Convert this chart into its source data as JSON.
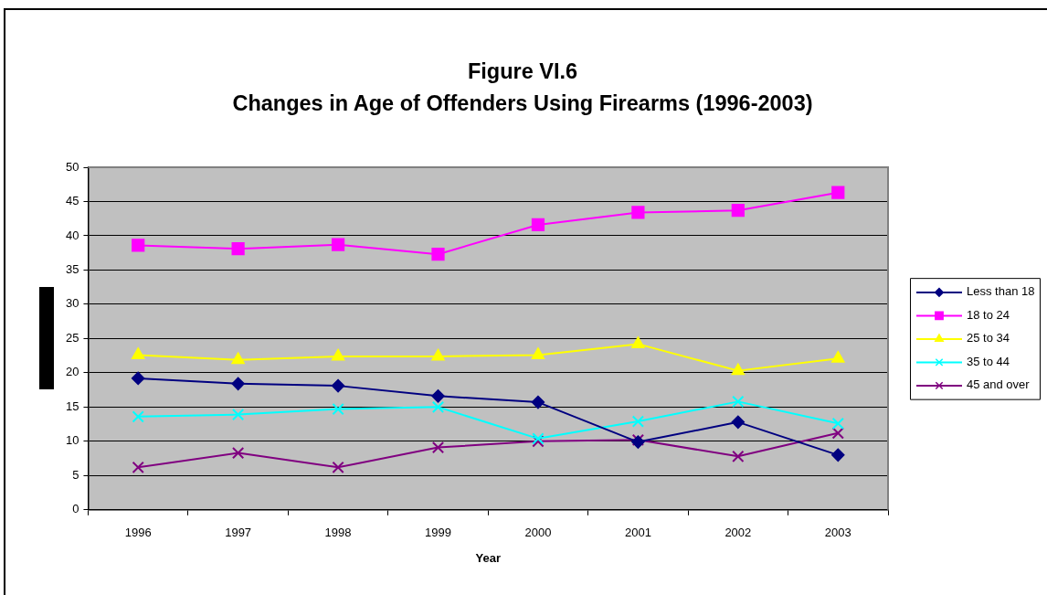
{
  "chart_data": {
    "type": "line",
    "title": "Figure VI.6",
    "subtitle": "Changes in Age of Offenders Using Firearms (1996-2003)",
    "xlabel": "Year",
    "categories": [
      "1996",
      "1997",
      "1998",
      "1999",
      "2000",
      "2001",
      "2002",
      "2003"
    ],
    "ylim": [
      0,
      50
    ],
    "yticks": [
      0,
      5,
      10,
      15,
      20,
      25,
      30,
      35,
      40,
      45,
      50
    ],
    "grid": "y",
    "legend": "right",
    "line_style": "solid",
    "series": [
      {
        "name": "Less than 18",
        "color": "#000080",
        "marker": "diamond",
        "values": [
          19.2,
          18.4,
          18.1,
          16.6,
          15.7,
          9.9,
          12.8,
          8.0
        ]
      },
      {
        "name": "18 to 24",
        "color": "#ff00ff",
        "marker": "square",
        "values": [
          38.6,
          38.1,
          38.7,
          37.3,
          41.6,
          43.4,
          43.7,
          46.3
        ]
      },
      {
        "name": "25 to 34",
        "color": "#ffff00",
        "marker": "triangle",
        "values": [
          22.6,
          21.9,
          22.4,
          22.4,
          22.6,
          24.2,
          20.3,
          22.1
        ]
      },
      {
        "name": "35 to 44",
        "color": "#00ffff",
        "marker": "cross",
        "values": [
          13.6,
          13.9,
          14.7,
          15.0,
          10.4,
          12.9,
          15.8,
          12.6
        ]
      },
      {
        "name": "45 and over",
        "color": "#800080",
        "marker": "cross",
        "values": [
          6.2,
          8.3,
          6.2,
          9.1,
          10.0,
          10.2,
          7.8,
          11.2
        ]
      }
    ]
  }
}
